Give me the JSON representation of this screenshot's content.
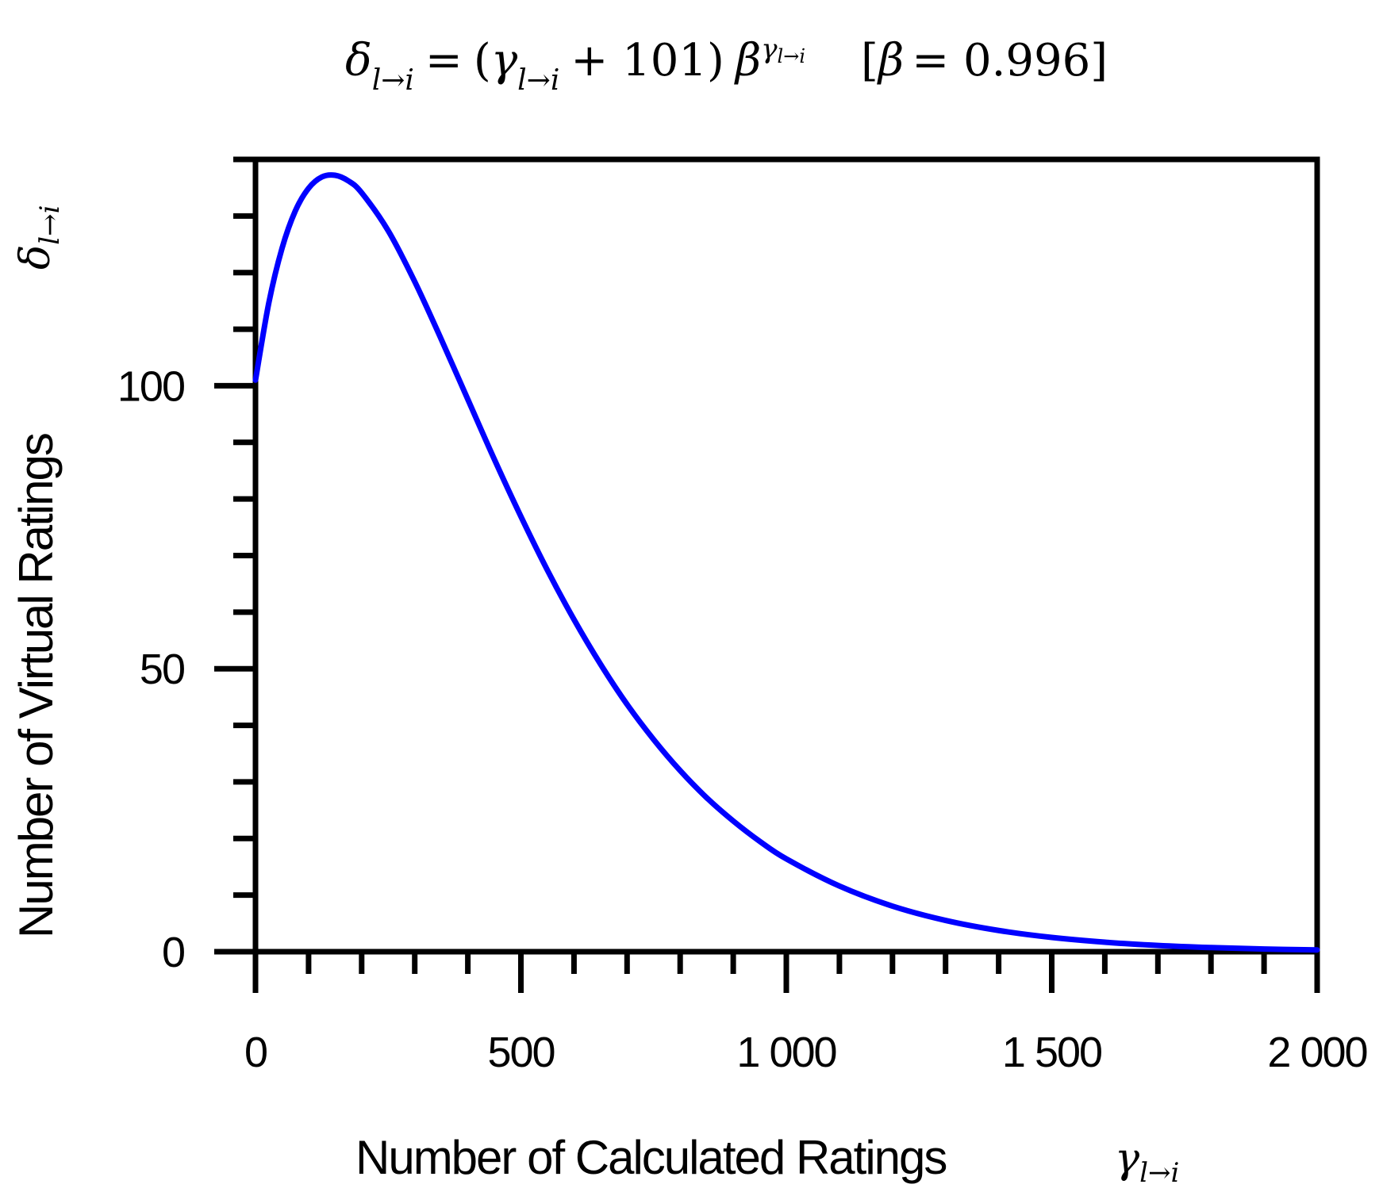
{
  "chart_data": {
    "type": "line",
    "title_formula": {
      "lhs": "δ",
      "lhs_sub": "l→i",
      "equals": "=",
      "open": "(",
      "gamma": "γ",
      "gamma_sub": "l→i",
      "plus": "+ 101)",
      "beta": "β",
      "exp_gamma": "γ",
      "exp_sub": "l→i",
      "param_open": "[",
      "param_beta": "β",
      "param_rest": "= 0.996]"
    },
    "xlabel": "Number of Calculated Ratings",
    "xlabel_symbol": "γ",
    "xlabel_symbol_sub": "l→i",
    "ylabel": "Number of Virtual Ratings",
    "ylabel_symbol": "δ",
    "ylabel_symbol_sub": "l→i",
    "xlim": [
      0,
      2000
    ],
    "ylim": [
      0,
      140
    ],
    "x_ticks": [
      {
        "value": 0,
        "label": "0"
      },
      {
        "value": 500,
        "label": "500"
      },
      {
        "value": 1000,
        "label": "1 000"
      },
      {
        "value": 1500,
        "label": "1 500"
      },
      {
        "value": 2000,
        "label": "2 000"
      }
    ],
    "x_minor_step": 100,
    "y_ticks": [
      {
        "value": 0,
        "label": "0"
      },
      {
        "value": 50,
        "label": "50"
      },
      {
        "value": 100,
        "label": "100"
      }
    ],
    "y_minor_step": 10,
    "grid": false,
    "series": [
      {
        "color": "#0000ff",
        "x": [
          0,
          25,
          50,
          75,
          100,
          125,
          150,
          175,
          200,
          250,
          300,
          350,
          400,
          450,
          500,
          550,
          600,
          650,
          700,
          750,
          800,
          850,
          900,
          950,
          1000,
          1100,
          1200,
          1300,
          1400,
          1500,
          1600,
          1700,
          1800,
          1900,
          2000
        ],
        "y": [
          101,
          114.6,
          124.3,
          130.9,
          134.9,
          136.9,
          137.2,
          136.2,
          134.1,
          127.4,
          118.4,
          108.2,
          97.6,
          87.0,
          76.9,
          67.4,
          58.7,
          50.8,
          43.7,
          37.5,
          32.0,
          27.2,
          23.1,
          19.5,
          16.4,
          11.6,
          8.05,
          5.53,
          3.75,
          2.52,
          1.68,
          1.11,
          0.73,
          0.48,
          0.31
        ]
      }
    ]
  }
}
